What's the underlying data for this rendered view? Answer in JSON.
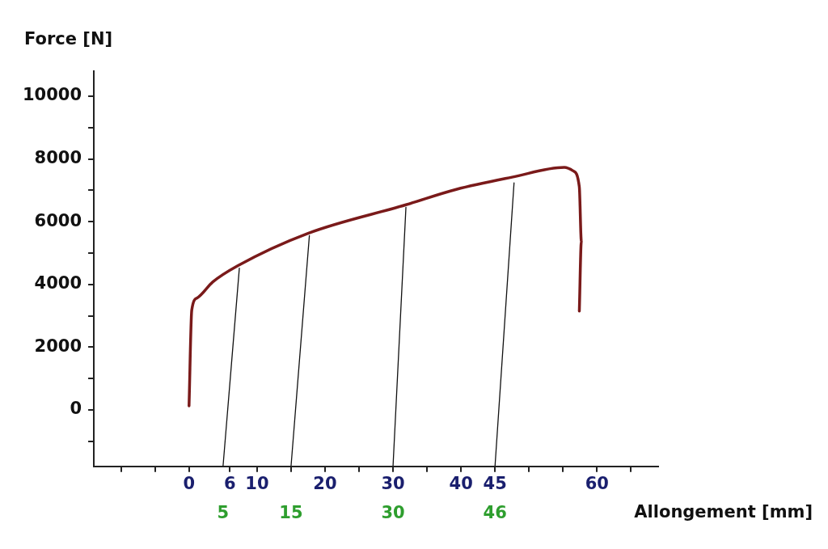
{
  "chart_data": {
    "type": "line",
    "xlabel": "Allongement [mm]",
    "ylabel": "Force [N]",
    "xlim": [
      -14,
      69
    ],
    "ylim": [
      -1800,
      10800
    ],
    "xticks": [
      {
        "value": -10,
        "label": null
      },
      {
        "value": -5,
        "label": null
      },
      0,
      6,
      10,
      {
        "value": 15,
        "label": null
      },
      20,
      {
        "value": 25,
        "label": null
      },
      30,
      {
        "value": 35,
        "label": null
      },
      40,
      45,
      {
        "value": 50,
        "label": null
      },
      {
        "value": 55,
        "label": null
      },
      60,
      {
        "value": 65,
        "label": null
      }
    ],
    "yticks": [
      {
        "value": -1000,
        "label": null
      },
      0,
      {
        "value": 1000,
        "label": null
      },
      2000,
      {
        "value": 3000,
        "label": null
      },
      4000,
      {
        "value": 5000,
        "label": null
      },
      6000,
      {
        "value": 7000,
        "label": null
      },
      8000,
      {
        "value": 9000,
        "label": null
      },
      10000
    ],
    "grid": false,
    "legend": false,
    "marker": "none",
    "series": [
      {
        "color": "#7a1a1a",
        "x": [
          0,
          0.4,
          1.2,
          3.5,
          7.2,
          17.5,
          31.9,
          39.3,
          47.5,
          55.2,
          56.5,
          57.4,
          57.7,
          57.4
        ],
        "values": [
          130,
          3180,
          3570,
          4080,
          4600,
          5630,
          6540,
          7030,
          7420,
          7730,
          7620,
          7110,
          5370,
          3150
        ]
      },
      {
        "color": "#111111",
        "x": [
          5,
          7.4
        ],
        "values": [
          -1800,
          4520
        ]
      },
      {
        "color": "#111111",
        "x": [
          15,
          17.7
        ],
        "values": [
          -1800,
          5560
        ]
      },
      {
        "color": "#111111",
        "x": [
          30,
          31.9
        ],
        "values": [
          -1800,
          6460
        ]
      },
      {
        "color": "#111111",
        "x": [
          45,
          47.8
        ],
        "values": [
          -1800,
          7240
        ]
      }
    ],
    "annotations": [
      {
        "text": "5",
        "x": 5,
        "y": -1800
      },
      {
        "text": "15",
        "x": 15,
        "y": -1800
      },
      {
        "text": "30",
        "x": 30,
        "y": -1800
      },
      {
        "text": "46",
        "x": 45,
        "y": -1800
      }
    ]
  }
}
